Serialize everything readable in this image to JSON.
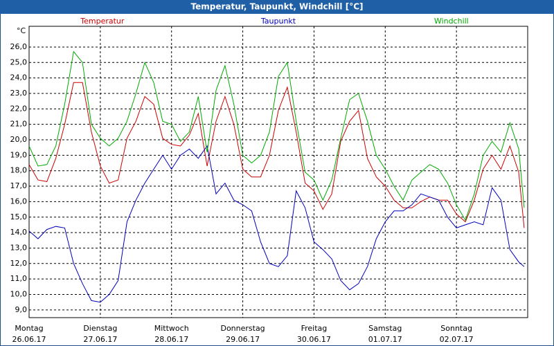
{
  "chart_data": {
    "type": "line",
    "title": "Temperatur, Taupunkt, Windchill [°C]",
    "y_unit": "°C",
    "x": [
      0,
      0.125,
      0.25,
      0.375,
      0.5,
      0.625,
      0.75,
      0.875,
      1,
      1.125,
      1.25,
      1.375,
      1.5,
      1.625,
      1.75,
      1.875,
      2,
      2.125,
      2.25,
      2.375,
      2.5,
      2.625,
      2.75,
      2.875,
      3,
      3.125,
      3.25,
      3.375,
      3.5,
      3.625,
      3.75,
      3.875,
      4,
      4.125,
      4.25,
      4.375,
      4.5,
      4.625,
      4.75,
      4.875,
      5,
      5.125,
      5.25,
      5.375,
      5.5,
      5.625,
      5.75,
      5.875,
      6,
      6.125,
      6.25,
      6.375,
      6.5,
      6.625,
      6.75,
      6.875,
      6.95
    ],
    "series": [
      {
        "name": "Temperatur",
        "color": "#cc0000",
        "values": [
          18.4,
          17.4,
          17.3,
          18.8,
          21.0,
          23.7,
          23.7,
          20.5,
          18.3,
          17.2,
          17.4,
          20.1,
          21.2,
          22.8,
          22.3,
          20.1,
          19.7,
          19.6,
          20.3,
          21.7,
          18.3,
          21.2,
          22.8,
          21.0,
          18.1,
          17.6,
          17.6,
          19.0,
          21.9,
          23.4,
          20.5,
          17.2,
          16.7,
          15.5,
          16.5,
          19.9,
          21.2,
          21.9,
          18.8,
          17.6,
          17.0,
          16.1,
          15.6,
          15.6,
          16.0,
          16.3,
          16.1,
          16.1,
          15.2,
          14.7,
          16.1,
          18.1,
          19.0,
          18.1,
          19.6,
          17.9,
          14.3
        ]
      },
      {
        "name": "Taupunkt",
        "color": "#0000bb",
        "values": [
          14.1,
          13.6,
          14.2,
          14.4,
          14.3,
          12.0,
          10.7,
          9.6,
          9.5,
          10.0,
          10.9,
          14.7,
          16.1,
          17.2,
          18.1,
          19.0,
          18.1,
          19.0,
          19.4,
          18.8,
          19.6,
          16.5,
          17.2,
          16.1,
          15.8,
          15.4,
          13.4,
          12.0,
          11.8,
          12.5,
          16.7,
          15.6,
          13.4,
          12.9,
          12.3,
          10.9,
          10.3,
          10.7,
          11.8,
          13.6,
          14.7,
          15.4,
          15.4,
          15.8,
          16.5,
          16.3,
          16.1,
          15.0,
          14.3,
          14.5,
          14.7,
          14.5,
          16.9,
          16.1,
          12.9,
          12.1,
          11.8
        ]
      },
      {
        "name": "Windchill",
        "color": "#00aa00",
        "values": [
          19.6,
          18.3,
          18.4,
          19.6,
          22.3,
          25.7,
          25.0,
          21.0,
          20.1,
          19.6,
          20.1,
          21.2,
          23.0,
          25.0,
          23.7,
          21.2,
          21.0,
          19.9,
          20.5,
          22.8,
          19.2,
          23.2,
          24.8,
          22.3,
          19.0,
          18.5,
          19.0,
          20.5,
          24.1,
          25.0,
          21.2,
          17.9,
          17.4,
          16.1,
          17.4,
          20.1,
          22.6,
          23.0,
          21.2,
          19.0,
          18.1,
          17.0,
          16.1,
          17.4,
          17.9,
          18.4,
          18.1,
          17.2,
          15.8,
          14.8,
          16.5,
          19.0,
          19.9,
          19.2,
          21.1,
          19.4,
          15.6
        ]
      }
    ],
    "xlim": [
      0,
      7
    ],
    "xticks": [
      0,
      1,
      2,
      3,
      4,
      5,
      6
    ],
    "xtick_labels": [
      [
        "Montag",
        "26.06.17"
      ],
      [
        "Dienstag",
        "27.06.17"
      ],
      [
        "Mittwoch",
        "28.06.17"
      ],
      [
        "Donnerstag",
        "29.06.17"
      ],
      [
        "Freitag",
        "30.06.17"
      ],
      [
        "Samstag",
        "01.07.17"
      ],
      [
        "Sonntag",
        "02.07.17"
      ]
    ],
    "ylim": [
      8.5,
      27.34
    ],
    "yticks": [
      {
        "value": 9,
        "label": "9,0"
      },
      {
        "value": 10,
        "label": "10,0"
      },
      {
        "value": 11,
        "label": "11,0"
      },
      {
        "value": 12,
        "label": "12,0"
      },
      {
        "value": 13,
        "label": "13,0"
      },
      {
        "value": 14,
        "label": "14,0"
      },
      {
        "value": 15,
        "label": "15,0"
      },
      {
        "value": 16,
        "label": "16,0"
      },
      {
        "value": 17,
        "label": "17,0"
      },
      {
        "value": 18,
        "label": "18,0"
      },
      {
        "value": 19,
        "label": "19,0"
      },
      {
        "value": 20,
        "label": "20,0"
      },
      {
        "value": 21,
        "label": "21,0"
      },
      {
        "value": 22,
        "label": "22,0"
      },
      {
        "value": 23,
        "label": "23,0"
      },
      {
        "value": 24,
        "label": "24,0"
      },
      {
        "value": 25,
        "label": "25,0"
      },
      {
        "value": 26,
        "label": "26,0"
      }
    ],
    "grid": true
  }
}
